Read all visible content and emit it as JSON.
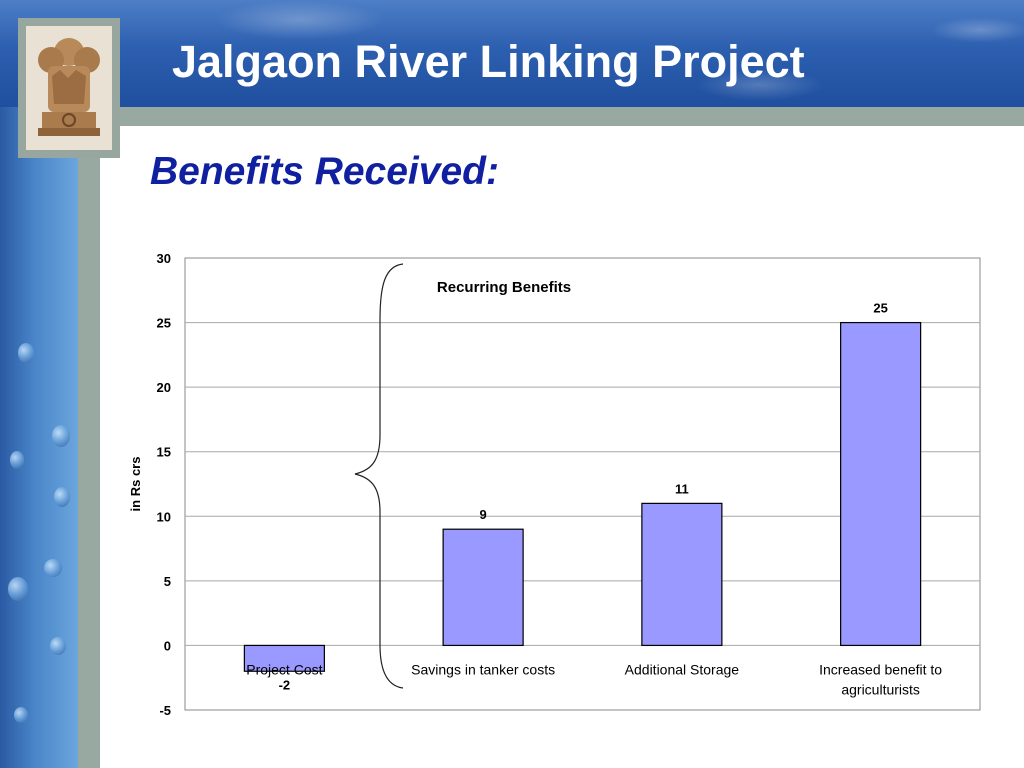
{
  "slide": {
    "title": "Jalgaon River Linking Project",
    "subtitle": "Benefits Received:"
  },
  "colors": {
    "banner": "#2d5fb0",
    "title_text": "#ffffff",
    "subtitle_text": "#1020a0",
    "bar_fill": "#9999ff",
    "side_strip": "#98a9a2"
  },
  "icons": [
    "national-emblem-icon"
  ],
  "chart_data": {
    "type": "bar",
    "ylabel": "in Rs crs",
    "ylim": [
      -5,
      30
    ],
    "yticks": [
      30,
      25,
      20,
      15,
      10,
      5,
      0,
      -5
    ],
    "grid": true,
    "categories": [
      [
        "Project Cost"
      ],
      [
        "Savings in tanker costs"
      ],
      [
        "Additional Storage"
      ],
      [
        "Increased benefit to",
        "agriculturists"
      ]
    ],
    "values": [
      -2,
      9,
      11,
      25
    ],
    "data_labels": [
      "-2",
      "9",
      "11",
      "25"
    ],
    "annotation": "Recurring Benefits"
  }
}
